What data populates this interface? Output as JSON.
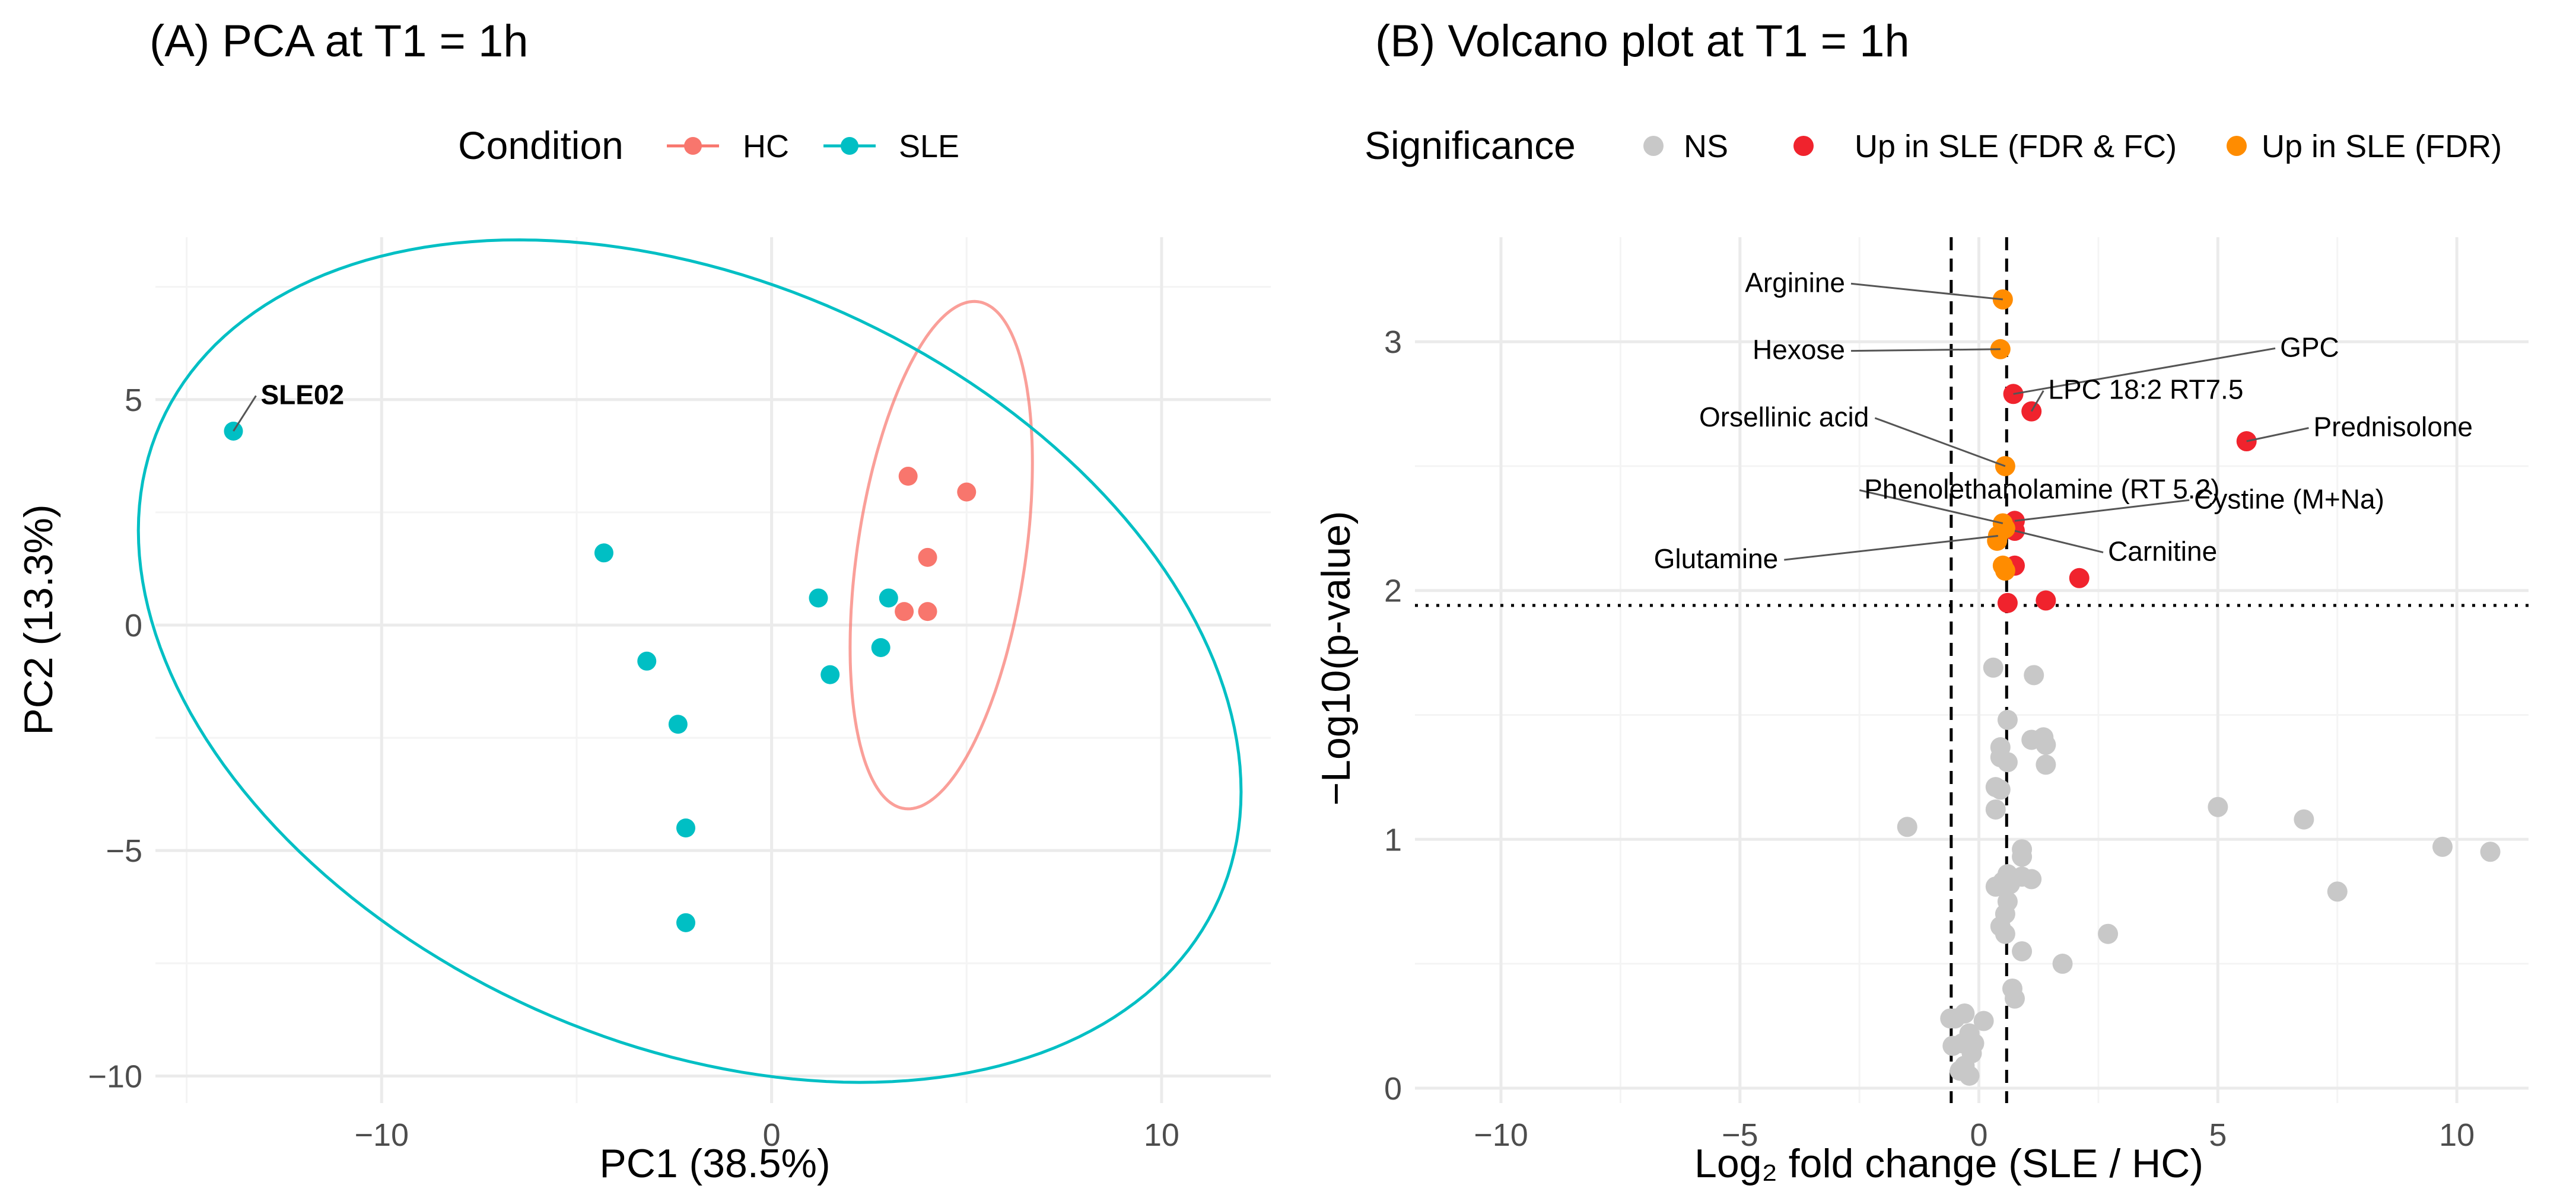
{
  "chart_data": [
    {
      "type": "scatter",
      "title": "(A) PCA at T1 = 1h",
      "xlabel": "PC1 (38.5%)",
      "ylabel": "PC2 (13.3%)",
      "xlim": [
        -15.8,
        12.8
      ],
      "ylim": [
        -10.6,
        8.6
      ],
      "xticks": [
        -10,
        0,
        10
      ],
      "xtick_labels": [
        "−10",
        "0",
        "10"
      ],
      "yticks": [
        -10,
        -5,
        0,
        5
      ],
      "ytick_labels": [
        "−10",
        "−5",
        "0",
        "5"
      ],
      "grid": true,
      "legend": {
        "title": "Condition",
        "position": "top",
        "entries": [
          {
            "label": "HC",
            "color": "#F8766D"
          },
          {
            "label": "SLE",
            "color": "#00BFC4"
          }
        ]
      },
      "series": [
        {
          "name": "HC",
          "color": "#F8766D",
          "points": [
            [
              3.5,
              3.3
            ],
            [
              5.0,
              2.95
            ],
            [
              4.0,
              1.5
            ],
            [
              3.4,
              0.3
            ],
            [
              4.0,
              0.3
            ]
          ]
        },
        {
          "name": "SLE",
          "color": "#00BFC4",
          "points": [
            [
              -13.8,
              4.3
            ],
            [
              -4.3,
              1.6
            ],
            [
              -3.2,
              -0.8
            ],
            [
              -2.4,
              -2.2
            ],
            [
              -2.2,
              -4.5
            ],
            [
              -2.2,
              -6.6
            ],
            [
              1.2,
              0.6
            ],
            [
              3.0,
              0.6
            ],
            [
              1.5,
              -1.1
            ],
            [
              2.8,
              -0.5
            ]
          ]
        }
      ],
      "ellipses": [
        {
          "series": "HC",
          "color": "#F8766D",
          "center": [
            4.35,
            1.55
          ],
          "semi_major": 5.7,
          "semi_minor": 2.15,
          "angle_deg": 80
        },
        {
          "series": "SLE",
          "color": "#00BFC4",
          "center": [
            -2.1,
            -0.8
          ],
          "semi_major": 14.6,
          "semi_minor": 8.6,
          "angle_deg": -18
        }
      ],
      "annotations": [
        {
          "label": "SLE02",
          "point": [
            -13.8,
            4.3
          ],
          "text_at": [
            -13.1,
            4.9
          ]
        }
      ]
    },
    {
      "type": "scatter",
      "title": "(B) Volcano plot at T1 = 1h",
      "xlabel": "Log₂ fold change (SLE / HC)",
      "ylabel": "−Log10(p-value)",
      "xlim": [
        -11.8,
        11.5
      ],
      "ylim": [
        -0.06,
        3.42
      ],
      "xticks": [
        -10,
        -5,
        0,
        5,
        10
      ],
      "xtick_labels": [
        "−10",
        "−5",
        "0",
        "5",
        "10"
      ],
      "yticks": [
        0,
        1,
        2,
        3
      ],
      "ytick_labels": [
        "0",
        "1",
        "2",
        "3"
      ],
      "grid": true,
      "thresholds": {
        "fc_lines": [
          -0.58,
          0.58
        ],
        "p_line": 1.94
      },
      "legend": {
        "title": "Significance",
        "position": "top",
        "entries": [
          {
            "label": "NS",
            "color": "#C8C8C8"
          },
          {
            "label": "Up in SLE (FDR & FC)",
            "color": "#F0232D"
          },
          {
            "label": "Up in SLE (FDR)",
            "color": "#FF8C00"
          }
        ]
      },
      "series": [
        {
          "name": "NS",
          "color": "#C8C8C8",
          "points": [
            [
              0.3,
              1.69
            ],
            [
              1.15,
              1.66
            ],
            [
              0.6,
              1.48
            ],
            [
              1.1,
              1.4
            ],
            [
              1.35,
              1.41
            ],
            [
              1.4,
              1.38
            ],
            [
              0.45,
              1.37
            ],
            [
              0.45,
              1.33
            ],
            [
              0.6,
              1.31
            ],
            [
              1.4,
              1.3
            ],
            [
              0.35,
              1.21
            ],
            [
              0.45,
              1.2
            ],
            [
              0.35,
              1.12
            ],
            [
              5.0,
              1.13
            ],
            [
              6.8,
              1.08
            ],
            [
              -1.5,
              1.05
            ],
            [
              9.7,
              0.97
            ],
            [
              10.7,
              0.95
            ],
            [
              0.9,
              0.96
            ],
            [
              0.9,
              0.93
            ],
            [
              0.6,
              0.86
            ],
            [
              0.9,
              0.85
            ],
            [
              1.1,
              0.84
            ],
            [
              0.5,
              0.83
            ],
            [
              0.65,
              0.82
            ],
            [
              0.35,
              0.81
            ],
            [
              7.5,
              0.79
            ],
            [
              0.6,
              0.75
            ],
            [
              0.55,
              0.7
            ],
            [
              0.45,
              0.65
            ],
            [
              0.55,
              0.62
            ],
            [
              2.7,
              0.62
            ],
            [
              0.9,
              0.55
            ],
            [
              1.75,
              0.5
            ],
            [
              0.7,
              0.4
            ],
            [
              0.75,
              0.36
            ],
            [
              -0.3,
              0.3
            ],
            [
              -0.6,
              0.28
            ],
            [
              -0.5,
              0.28
            ],
            [
              0.1,
              0.27
            ],
            [
              -0.2,
              0.22
            ],
            [
              -0.35,
              0.18
            ],
            [
              -0.55,
              0.17
            ],
            [
              -0.1,
              0.18
            ],
            [
              -0.15,
              0.14
            ],
            [
              -0.3,
              0.09
            ],
            [
              -0.4,
              0.07
            ],
            [
              -0.2,
              0.05
            ]
          ]
        },
        {
          "name": "Up in SLE (FDR & FC)",
          "color": "#F0232D",
          "points": [
            [
              0.72,
              2.79
            ],
            [
              1.1,
              2.72
            ],
            [
              5.6,
              2.6
            ],
            [
              0.75,
              2.28
            ],
            [
              0.75,
              2.24
            ],
            [
              0.75,
              2.1
            ],
            [
              2.1,
              2.05
            ],
            [
              0.6,
              1.95
            ],
            [
              1.4,
              1.96
            ]
          ]
        },
        {
          "name": "Up in SLE (FDR)",
          "color": "#FF8C00",
          "points": [
            [
              0.5,
              3.17
            ],
            [
              0.45,
              2.97
            ],
            [
              0.55,
              2.5
            ],
            [
              0.5,
              2.27
            ],
            [
              0.55,
              2.25
            ],
            [
              0.4,
              2.22
            ],
            [
              0.38,
              2.2
            ],
            [
              0.5,
              2.1
            ],
            [
              0.55,
              2.08
            ]
          ]
        }
      ],
      "annotations": [
        {
          "label": "Arginine",
          "point": [
            0.5,
            3.17
          ],
          "text_at": [
            -2.8,
            3.2
          ],
          "align": "end"
        },
        {
          "label": "Hexose",
          "point": [
            0.45,
            2.97
          ],
          "text_at": [
            -2.8,
            2.93
          ],
          "align": "end"
        },
        {
          "label": "GPC",
          "point": [
            0.72,
            2.79
          ],
          "text_at": [
            6.3,
            2.94
          ],
          "align": "start"
        },
        {
          "label": "LPC 18:2 RT7.5",
          "point": [
            1.1,
            2.72
          ],
          "text_at": [
            1.45,
            2.77
          ],
          "align": "start"
        },
        {
          "label": "Prednisolone",
          "point": [
            5.6,
            2.6
          ],
          "text_at": [
            7.0,
            2.62
          ],
          "align": "start"
        },
        {
          "label": "Orsellinic acid",
          "point": [
            0.55,
            2.5
          ],
          "text_at": [
            -2.3,
            2.66
          ],
          "align": "end"
        },
        {
          "label": "Phenolethanolamine (RT 5.2)",
          "point": [
            0.5,
            2.27
          ],
          "text_at": [
            -2.4,
            2.37
          ],
          "align": "start"
        },
        {
          "label": "Cystine (M+Na)",
          "point": [
            0.75,
            2.28
          ],
          "text_at": [
            4.5,
            2.33
          ],
          "align": "start"
        },
        {
          "label": "Carnitine",
          "point": [
            0.75,
            2.24
          ],
          "text_at": [
            2.7,
            2.12
          ],
          "align": "start"
        },
        {
          "label": "Glutamine",
          "point": [
            0.4,
            2.22
          ],
          "text_at": [
            -4.2,
            2.09
          ],
          "align": "end"
        }
      ]
    }
  ]
}
